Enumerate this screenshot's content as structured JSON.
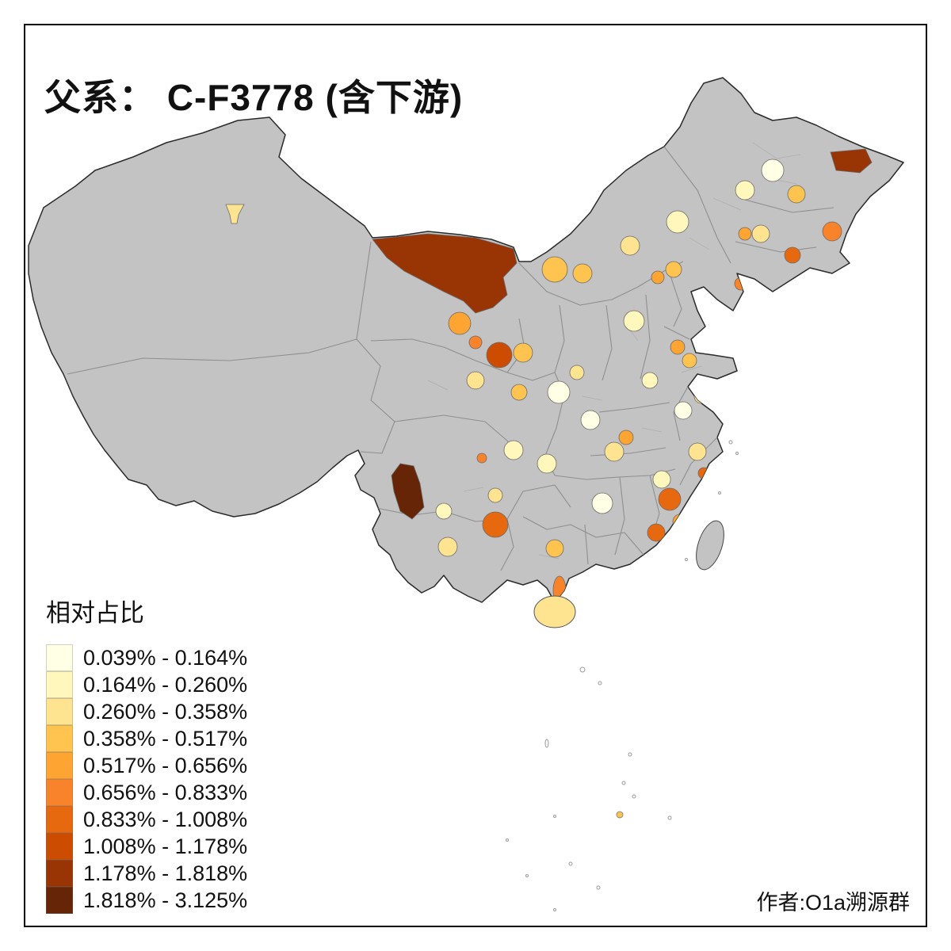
{
  "title": "父系： C-F3778 (含下游)",
  "legend": {
    "title": "相对占比",
    "items": [
      {
        "label": "0.039% - 0.164%",
        "color": "#FFFFE5"
      },
      {
        "label": "0.164% - 0.260%",
        "color": "#FFF7BC"
      },
      {
        "label": "0.260% - 0.358%",
        "color": "#FEE391"
      },
      {
        "label": "0.358% - 0.517%",
        "color": "#FEC44F"
      },
      {
        "label": "0.517% - 0.656%",
        "color": "#FEA432"
      },
      {
        "label": "0.656% - 0.833%",
        "color": "#F8832B"
      },
      {
        "label": "0.833% - 1.008%",
        "color": "#E66910"
      },
      {
        "label": "1.008% - 1.178%",
        "color": "#CC4C02"
      },
      {
        "label": "1.178% - 1.818%",
        "color": "#993404"
      },
      {
        "label": "1.818% - 3.125%",
        "color": "#662506"
      }
    ]
  },
  "credit": "作者:O1a溯源群",
  "map": {
    "no_data_color": "#C3C3C3",
    "outline_color": "#2B2B2B",
    "boundary_color": "#8F8F8F",
    "background": "#FFFFFF"
  }
}
